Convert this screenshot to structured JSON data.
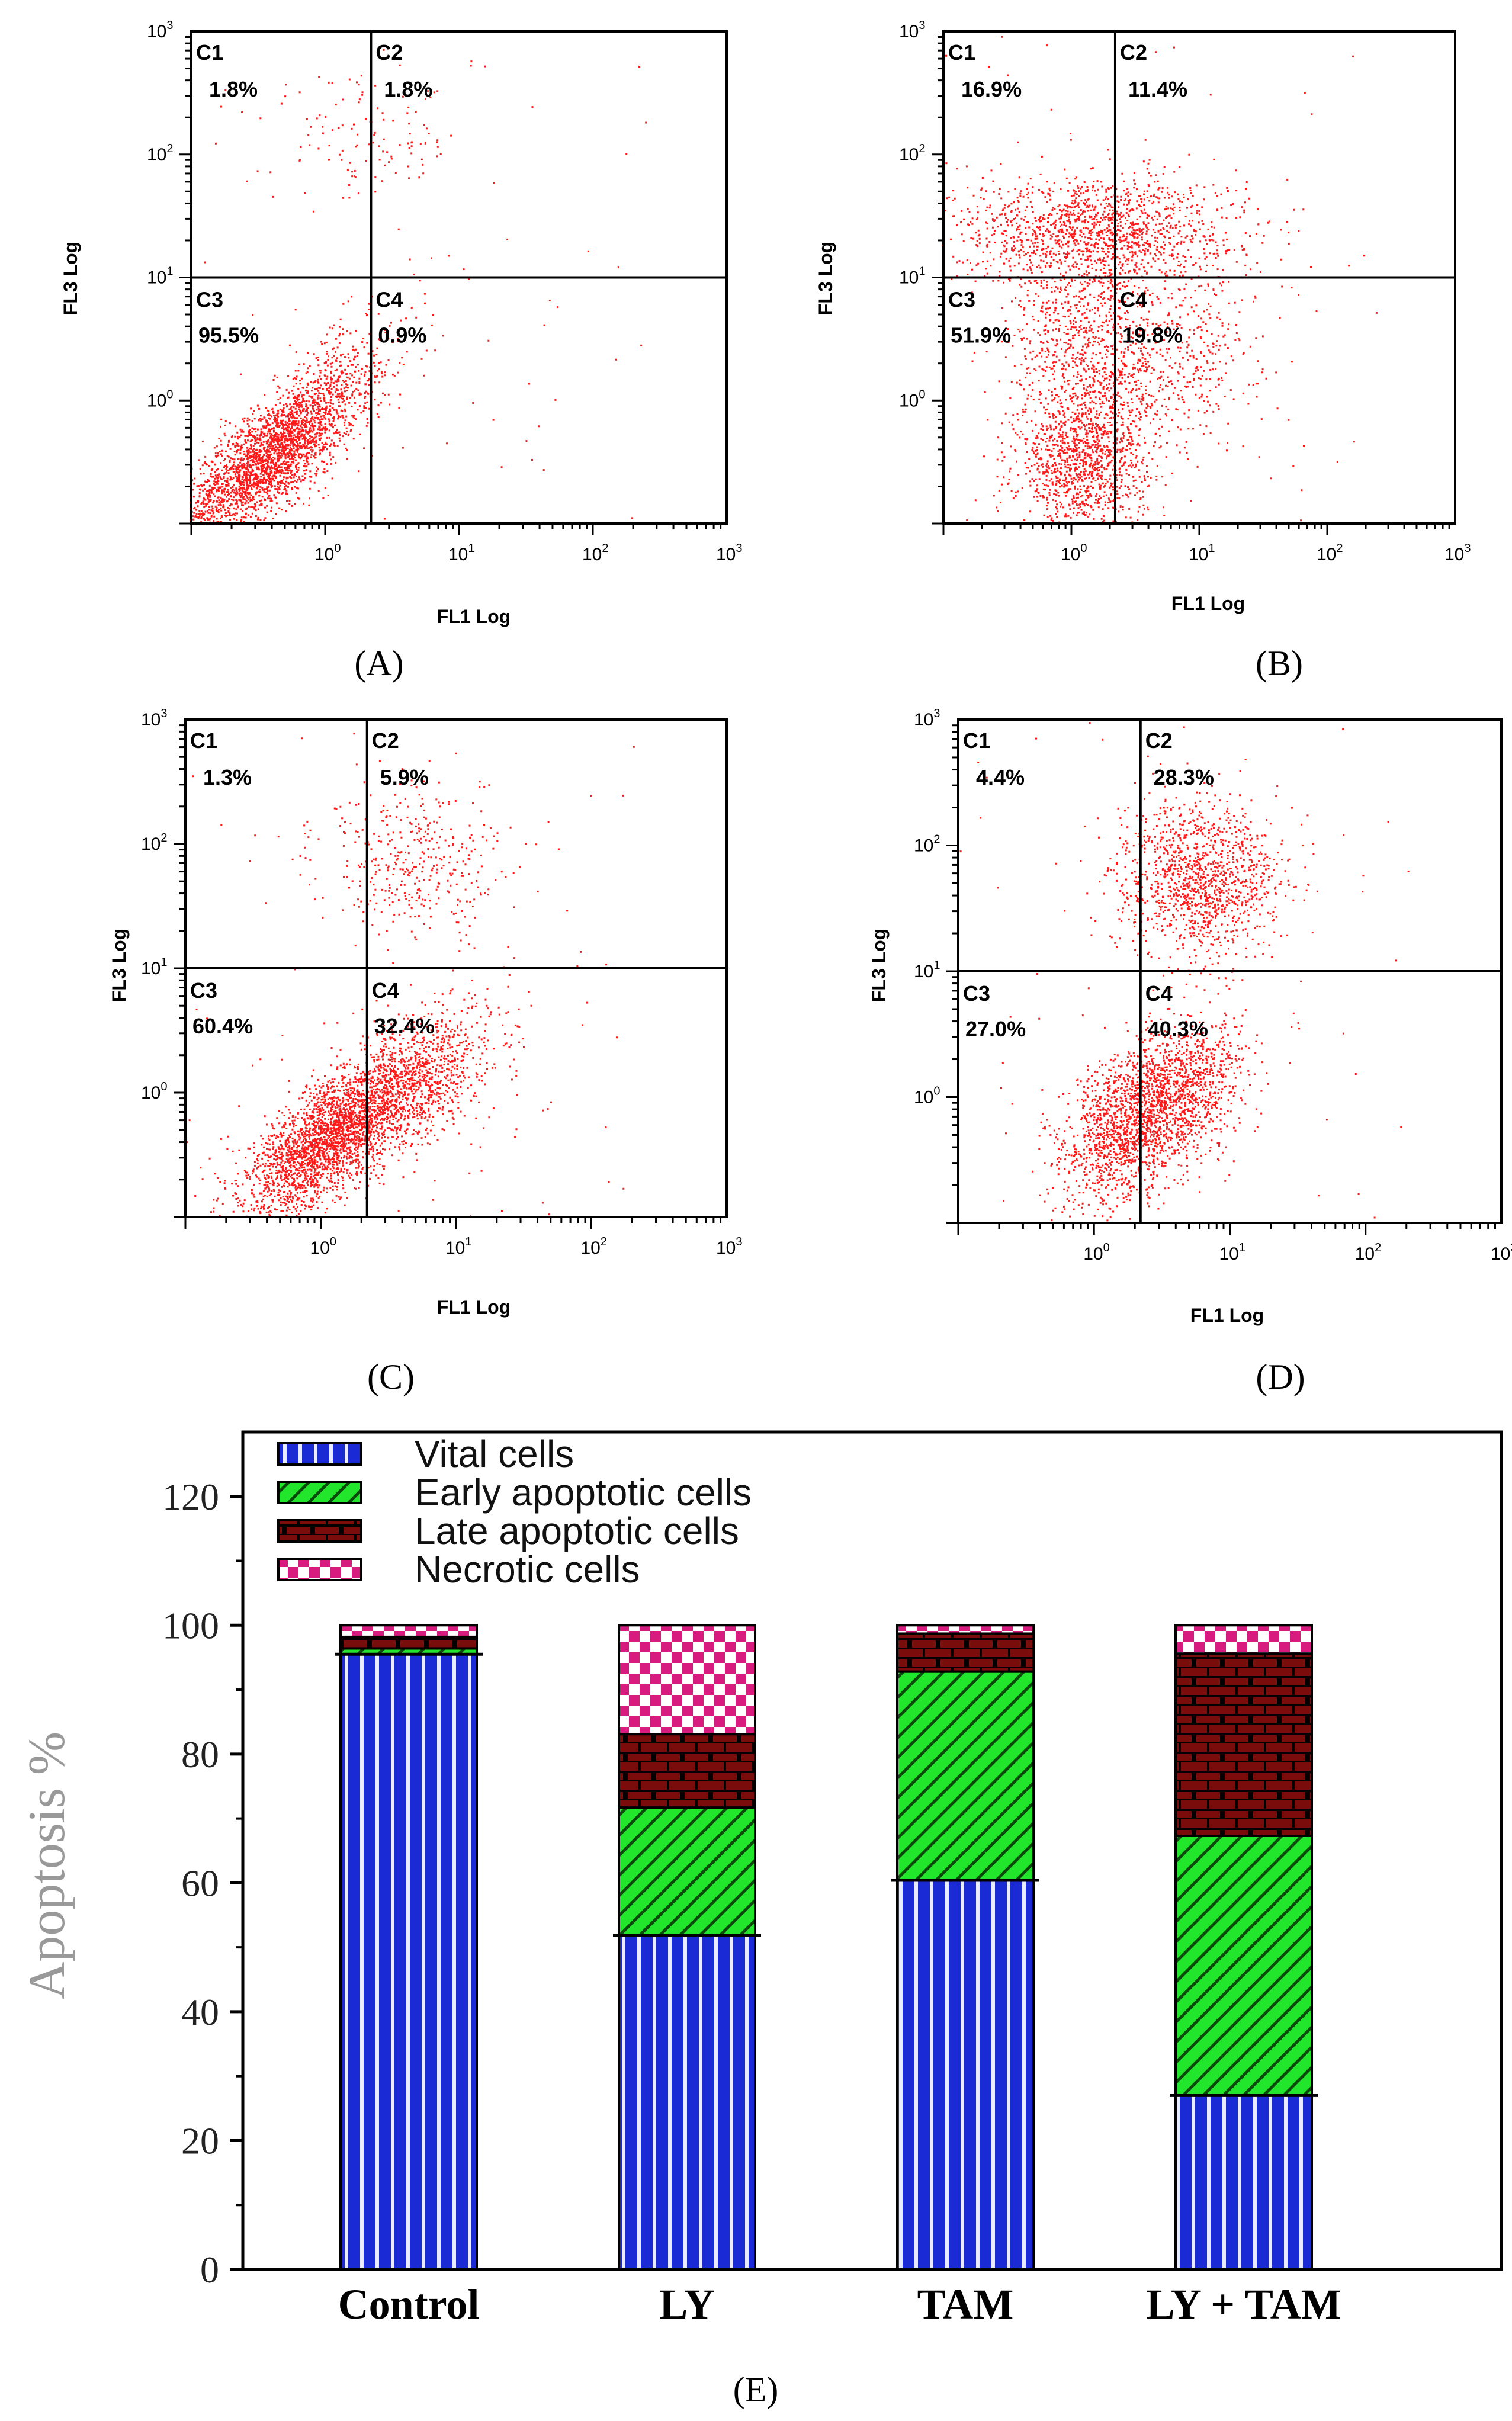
{
  "chart_data": [
    {
      "panel": "A",
      "type": "scatter",
      "caption": "(A)",
      "xlabel": "FL1 Log",
      "ylabel": "FL3 Log",
      "xlim": [
        0.1,
        1000
      ],
      "ylim": [
        0.1,
        1000
      ],
      "scale": "log",
      "gate": {
        "x": 2.2,
        "y": 10
      },
      "quadrants": [
        {
          "name": "C1",
          "value": "1.8%"
        },
        {
          "name": "C2",
          "value": "1.8%"
        },
        {
          "name": "C3",
          "value": "95.5%"
        },
        {
          "name": "C4",
          "value": "0.9%"
        }
      ],
      "clusters": [
        {
          "cx": 0.38,
          "cy": 0.35,
          "sx": 0.32,
          "sy": 0.32,
          "corr": 0.75,
          "n": 2600
        },
        {
          "cx": 1.2,
          "cy": 1.4,
          "sx": 0.3,
          "sy": 0.3,
          "corr": 0.6,
          "n": 300
        },
        {
          "cx": 2.0,
          "cy": 130,
          "sx": 0.35,
          "sy": 0.25,
          "corr": 0,
          "n": 120
        }
      ]
    },
    {
      "panel": "B",
      "type": "scatter",
      "caption": "(B)",
      "xlabel": "FL1 Log",
      "ylabel": "FL3 Log",
      "xlim": [
        0.1,
        1000
      ],
      "ylim": [
        0.1,
        1000
      ],
      "scale": "log",
      "gate": {
        "x": 2.2,
        "y": 10
      },
      "quadrants": [
        {
          "name": "C1",
          "value": "16.9%"
        },
        {
          "name": "C2",
          "value": "11.4%"
        },
        {
          "name": "C3",
          "value": "51.9%"
        },
        {
          "name": "C4",
          "value": "19.8%"
        }
      ],
      "clusters": [
        {
          "cx": 1.2,
          "cy": 0.3,
          "sx": 0.25,
          "sy": 0.3,
          "corr": 0,
          "n": 1200
        },
        {
          "cx": 1.5,
          "cy": 25,
          "sx": 0.55,
          "sy": 0.22,
          "corr": 0,
          "n": 1400
        },
        {
          "cx": 1.3,
          "cy": 3,
          "sx": 0.3,
          "sy": 0.45,
          "corr": 0,
          "n": 900
        },
        {
          "cx": 6,
          "cy": 2,
          "sx": 0.35,
          "sy": 0.4,
          "corr": 0.3,
          "n": 500
        }
      ]
    },
    {
      "panel": "C",
      "type": "scatter",
      "caption": "(C)",
      "xlabel": "FL1 Log",
      "ylabel": "FL3 Log",
      "xlim": [
        0.1,
        1000
      ],
      "ylim": [
        0.1,
        1000
      ],
      "scale": "log",
      "gate": {
        "x": 2.2,
        "y": 10
      },
      "quadrants": [
        {
          "name": "C1",
          "value": "1.3%"
        },
        {
          "name": "C2",
          "value": "5.9%"
        },
        {
          "name": "C3",
          "value": "60.4%"
        },
        {
          "name": "C4",
          "value": "32.4%"
        }
      ],
      "clusters": [
        {
          "cx": 1.2,
          "cy": 0.45,
          "sx": 0.32,
          "sy": 0.32,
          "corr": 0.7,
          "n": 2600
        },
        {
          "cx": 5,
          "cy": 1.3,
          "sx": 0.3,
          "sy": 0.3,
          "corr": 0.5,
          "n": 1000
        },
        {
          "cx": 5,
          "cy": 70,
          "sx": 0.35,
          "sy": 0.3,
          "corr": 0,
          "n": 400
        }
      ]
    },
    {
      "panel": "D",
      "type": "scatter",
      "caption": "(D)",
      "xlabel": "FL1 Log",
      "ylabel": "FL3 Log",
      "xlim": [
        0.1,
        1000
      ],
      "ylim": [
        0.1,
        1000
      ],
      "scale": "log",
      "gate": {
        "x": 2.2,
        "y": 10
      },
      "quadrants": [
        {
          "name": "C1",
          "value": "4.4%"
        },
        {
          "name": "C2",
          "value": "28.3%"
        },
        {
          "name": "C3",
          "value": "27.0%"
        },
        {
          "name": "C4",
          "value": "40.3%"
        }
      ],
      "clusters": [
        {
          "cx": 1.8,
          "cy": 0.6,
          "sx": 0.25,
          "sy": 0.33,
          "corr": 0.4,
          "n": 1600
        },
        {
          "cx": 5,
          "cy": 1.2,
          "sx": 0.22,
          "sy": 0.28,
          "corr": 0.3,
          "n": 800
        },
        {
          "cx": 6,
          "cy": 55,
          "sx": 0.3,
          "sy": 0.3,
          "corr": 0,
          "n": 1300
        }
      ]
    },
    {
      "panel": "E",
      "type": "bar",
      "stacked": true,
      "caption": "(E)",
      "xlabel": "",
      "ylabel": "Apoptosis %",
      "ylim": [
        0,
        130
      ],
      "yticks": [
        0,
        20,
        40,
        60,
        80,
        100,
        120
      ],
      "categories": [
        "Control",
        "LY",
        "TAM",
        "LY + TAM"
      ],
      "series": [
        {
          "name": "Vital cells",
          "values": [
            95.5,
            51.9,
            60.4,
            27.0
          ],
          "color": "#1a2bd6"
        },
        {
          "name": "Early apoptotic cells",
          "values": [
            0.9,
            19.8,
            32.4,
            40.3
          ],
          "color": "#22e62b"
        },
        {
          "name": "Late apoptotic cells",
          "values": [
            1.8,
            11.4,
            5.9,
            28.3
          ],
          "color": "#7a0c0c"
        },
        {
          "name": "Necrotic cells",
          "values": [
            1.8,
            16.9,
            1.3,
            4.4
          ],
          "color": "#d81b7e"
        }
      ]
    }
  ]
}
